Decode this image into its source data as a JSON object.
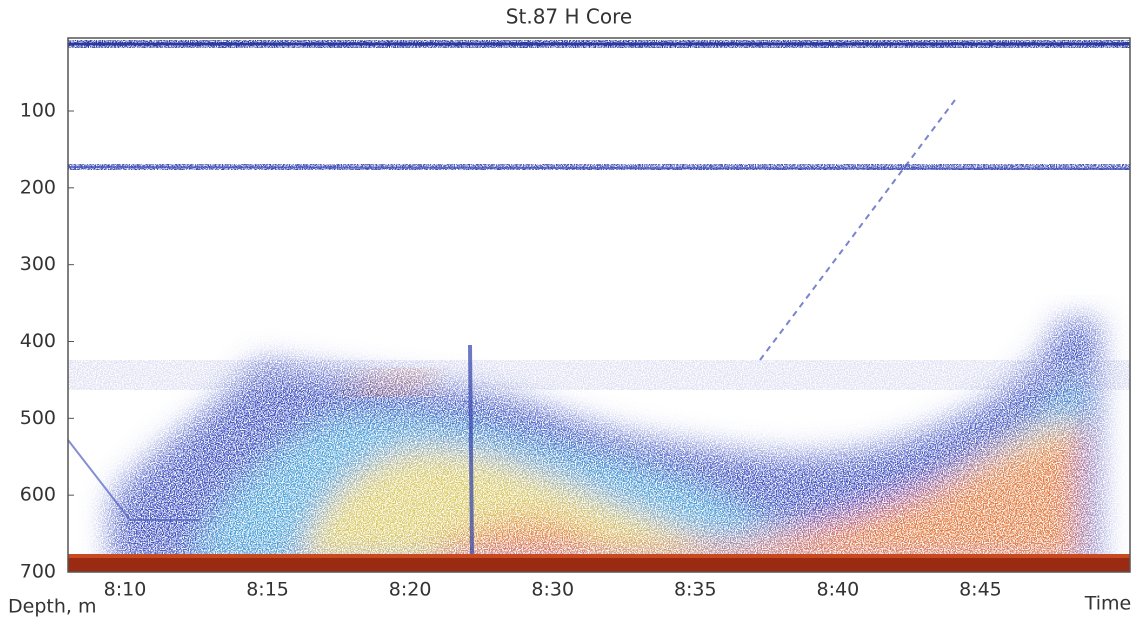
{
  "chart_data": {
    "type": "echogram",
    "title": "St.87 H Core",
    "x_label": "Time",
    "y_label": "Depth, m",
    "categories": [
      "8:10",
      "8:15",
      "8:20",
      "8:30",
      "8:35",
      "8:40",
      "8:45"
    ],
    "ylim": [
      5,
      700
    ],
    "y_inverted": true,
    "yticks": [
      100,
      200,
      300,
      400,
      500,
      600,
      700
    ]
  }
}
